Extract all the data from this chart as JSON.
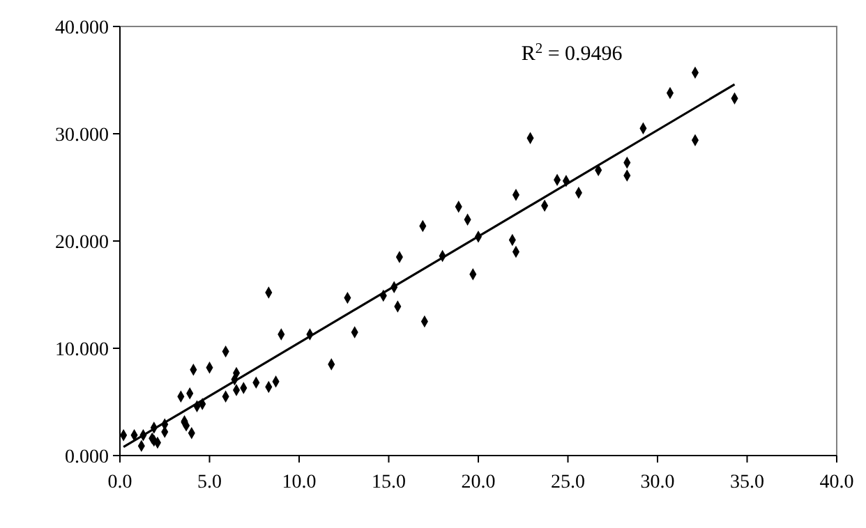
{
  "chart_data": {
    "type": "scatter",
    "marker": "diamond",
    "grid": false,
    "annotations": [
      "R$^{2}$ = 0.9496"
    ],
    "xlim": [
      0,
      40
    ],
    "ylim": [
      0,
      40
    ],
    "xticks": [
      {
        "value": 0,
        "label": "0.0"
      },
      {
        "value": 5,
        "label": "5.0"
      },
      {
        "value": 10,
        "label": "10.0"
      },
      {
        "value": 15,
        "label": "15.0"
      },
      {
        "value": 20,
        "label": "20.0"
      },
      {
        "value": 25,
        "label": "25.0"
      },
      {
        "value": 30,
        "label": "30.0"
      },
      {
        "value": 35,
        "label": "35.0"
      },
      {
        "value": 40,
        "label": "40.0"
      }
    ],
    "yticks": [
      {
        "value": 0,
        "label": "0.000"
      },
      {
        "value": 10,
        "label": "10.000"
      },
      {
        "value": 20,
        "label": "20.000"
      },
      {
        "value": 30,
        "label": "30.000"
      },
      {
        "value": 40,
        "label": "40.000"
      }
    ],
    "series": [
      {
        "color": "#000000",
        "x": [
          0.2,
          0.8,
          1.3,
          1.2,
          1.9,
          1.8,
          1.9,
          2.1,
          2.5,
          2.5,
          3.4,
          3.9,
          4.1,
          3.6,
          3.6,
          3.7,
          4.0,
          4.3,
          4.6,
          5.0,
          5.9,
          5.9,
          6.5,
          6.4,
          6.5,
          6.9,
          7.6,
          8.3,
          8.7,
          9.0,
          10.6,
          11.8,
          13.1,
          8.3,
          12.7,
          14.7,
          15.3,
          15.5,
          15.6,
          16.9,
          17.0,
          18.0,
          18.9,
          19.4,
          19.7,
          20.0,
          21.9,
          22.1,
          22.1,
          22.9,
          23.7,
          24.4,
          24.9,
          25.6,
          26.7,
          28.3,
          28.3,
          29.2,
          30.7,
          32.1,
          32.1,
          34.3
        ],
        "values": [
          1.9,
          1.9,
          1.9,
          0.9,
          2.6,
          1.6,
          1.4,
          1.2,
          2.9,
          2.2,
          5.5,
          5.8,
          8.0,
          3.2,
          3.1,
          2.8,
          2.1,
          4.6,
          4.8,
          8.2,
          9.7,
          5.5,
          7.7,
          7.1,
          6.1,
          6.3,
          6.8,
          6.4,
          6.9,
          11.3,
          11.3,
          8.5,
          11.5,
          15.2,
          14.7,
          14.9,
          15.7,
          13.9,
          18.5,
          21.4,
          12.5,
          18.6,
          23.2,
          22.0,
          16.9,
          20.4,
          20.1,
          24.3,
          19.0,
          29.6,
          23.3,
          25.7,
          25.6,
          24.5,
          26.6,
          27.3,
          26.1,
          30.5,
          33.8,
          35.7,
          29.4,
          33.3
        ]
      },
      {
        "type": "line",
        "color": "#000000",
        "marker": "none",
        "x": [
          0.2,
          34.3
        ],
        "values": [
          0.8,
          34.6
        ]
      }
    ]
  }
}
